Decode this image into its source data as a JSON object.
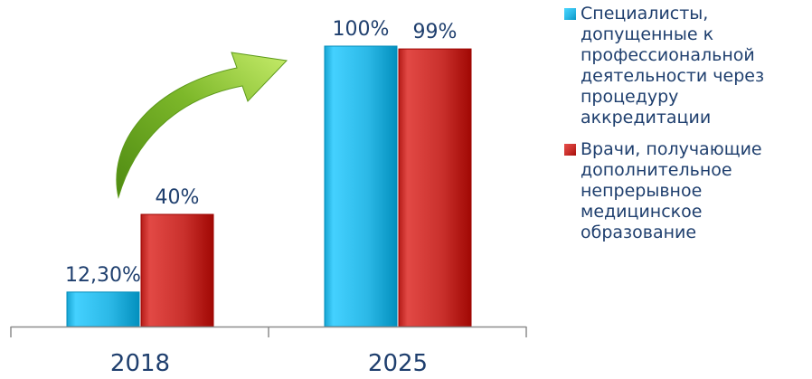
{
  "chart_data": {
    "type": "bar",
    "categories": [
      "2018",
      "2025"
    ],
    "series": [
      {
        "name": "Специалисты, допущенные к профессиональной деятельности через процедуру аккредитации",
        "values": [
          12.3,
          100
        ],
        "labels": [
          "12,30%",
          "100%"
        ],
        "color": "#2bb8e6"
      },
      {
        "name": "Врачи, получающие дополнительное непрерывное медицинское образование",
        "values": [
          40,
          99
        ],
        "labels": [
          "40%",
          "99%"
        ],
        "color": "#c9302c"
      }
    ],
    "ylim": [
      0,
      100
    ],
    "grid": false,
    "legend": "right",
    "annotation": "arrow-up-right"
  },
  "colors": {
    "arrow": "#7db82a",
    "text": "#1f3f6e",
    "axis": "#8c8c8c"
  }
}
